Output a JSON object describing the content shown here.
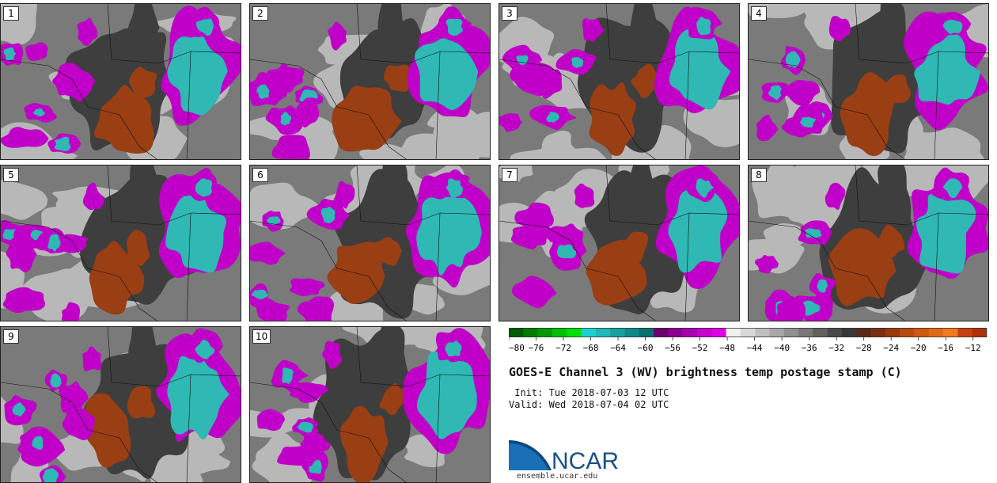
{
  "panels": [
    {
      "label": "1",
      "seed": 11
    },
    {
      "label": "2",
      "seed": 23
    },
    {
      "label": "3",
      "seed": 37
    },
    {
      "label": "4",
      "seed": 41
    },
    {
      "label": "5",
      "seed": 53
    },
    {
      "label": "6",
      "seed": 67
    },
    {
      "label": "7",
      "seed": 71
    },
    {
      "label": "8",
      "seed": 83
    },
    {
      "label": "9",
      "seed": 97
    },
    {
      "label": "10",
      "seed": 101
    }
  ],
  "colorbar": {
    "ticks": [
      "−80",
      "−76",
      "−72",
      "−68",
      "−64",
      "−60",
      "−56",
      "−52",
      "−48",
      "−44",
      "−40",
      "−36",
      "−32",
      "−28",
      "−24",
      "−20",
      "−16",
      "−12"
    ],
    "min": -80,
    "max": -10,
    "colors": [
      "#005a00",
      "#007a00",
      "#009a00",
      "#00bf00",
      "#00e000",
      "#20cfd0",
      "#20b8b8",
      "#18a0a0",
      "#108888",
      "#087070",
      "#6a0070",
      "#8a0090",
      "#a800b0",
      "#c800d0",
      "#e000e8",
      "#f0f0f0",
      "#d8d8d8",
      "#c0c0c0",
      "#a8a8a8",
      "#909090",
      "#787878",
      "#606060",
      "#484848",
      "#383838",
      "#5a2a18",
      "#7a3010",
      "#9a3a08",
      "#b84a10",
      "#d05a10",
      "#e06a18",
      "#f07a20",
      "#c84010",
      "#b03008"
    ]
  },
  "title": "GOES-E Channel 3 (WV) brightness temp postage stamp (C)",
  "init_label": " Init:",
  "init_value": "Tue 2018-07-03 12 UTC",
  "valid_label": "Valid:",
  "valid_value": "Wed 2018-07-04 02 UTC",
  "logo_text": "NCAR",
  "url": "ensemble.ucar.edu",
  "palette": {
    "magenta": "#c000c8",
    "cyan": "#2fb8b4",
    "brown": "#9a3e14",
    "darkgray": "#3e3e3e",
    "midgray": "#7a7a7a",
    "lightgray": "#b8b8b8",
    "logo_blue": "#1a6fb5"
  }
}
